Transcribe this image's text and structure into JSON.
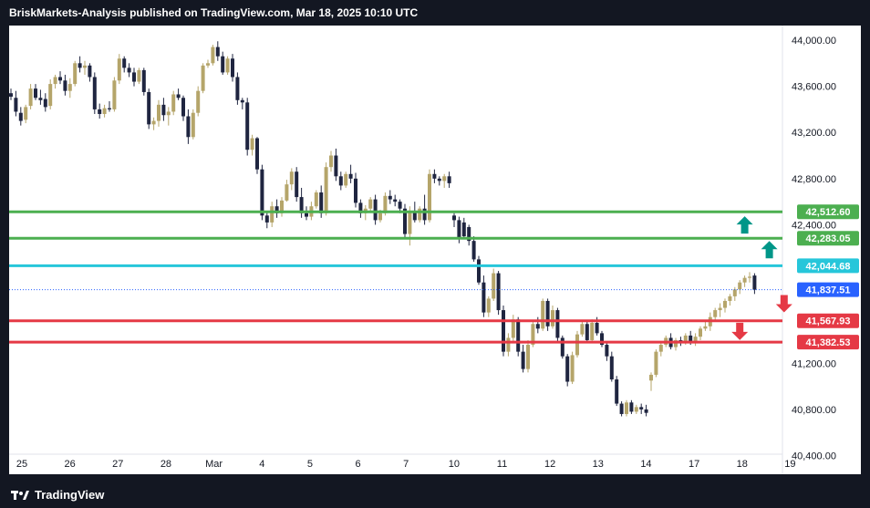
{
  "header": {
    "caption": "BriskMarkets-Analysis published on TradingView.com, Mar 18, 2025 10:10 UTC"
  },
  "footer": {
    "brand": "TradingView"
  },
  "colors": {
    "bull": "#b5a56a",
    "bear": "#1f2540",
    "resistance": "#4caf50",
    "pivot": "#26c6da",
    "support": "#e53945",
    "last_price": "#2962ff",
    "arrow_up": "#009688",
    "arrow_down": "#e53945"
  },
  "icons": {
    "up_arrow": "arrow-up-icon",
    "down_arrow": "arrow-down-icon",
    "logo": "tradingview-logo-icon"
  },
  "chart_data": {
    "type": "candlestick",
    "title": "",
    "xlabel": "",
    "ylabel": "",
    "ylim": [
      40100,
      44300
    ],
    "y_ticks": [
      "44,000.00",
      "43,600.00",
      "43,200.00",
      "42,800.00",
      "42,400.00",
      "41,200.00",
      "40,800.00",
      "40,400.00"
    ],
    "y_tick_values": [
      44000,
      43600,
      43200,
      42800,
      42400,
      41200,
      40800,
      40400
    ],
    "x_ticks": [
      "25",
      "26",
      "27",
      "28",
      "Mar",
      "4",
      "5",
      "6",
      "7",
      "10",
      "11",
      "12",
      "13",
      "14",
      "17",
      "18",
      "19"
    ],
    "levels": [
      {
        "label": "42,512.60",
        "value": 42512.6,
        "kind": "resistance"
      },
      {
        "label": "42,283.05",
        "value": 42283.05,
        "kind": "resistance"
      },
      {
        "label": "42,044.68",
        "value": 42044.68,
        "kind": "pivot"
      },
      {
        "label": "41,837.51",
        "value": 41837.51,
        "kind": "last_price"
      },
      {
        "label": "41,567.93",
        "value": 41567.93,
        "kind": "support"
      },
      {
        "label": "41,382.53",
        "value": 41382.53,
        "kind": "support"
      }
    ],
    "arrows": [
      {
        "direction": "up",
        "bar": 149,
        "value": 42395
      },
      {
        "direction": "up",
        "bar": 154,
        "value": 42180
      },
      {
        "direction": "down",
        "bar": 157,
        "value": 41720
      },
      {
        "direction": "down",
        "bar": 148,
        "value": 41480
      }
    ],
    "candles": [
      [
        43540,
        43580,
        43480,
        43510
      ],
      [
        43500,
        43560,
        43340,
        43380
      ],
      [
        43370,
        43420,
        43260,
        43300
      ],
      [
        43310,
        43440,
        43280,
        43420
      ],
      [
        43430,
        43620,
        43400,
        43580
      ],
      [
        43580,
        43620,
        43480,
        43500
      ],
      [
        43500,
        43570,
        43440,
        43480
      ],
      [
        43490,
        43540,
        43380,
        43420
      ],
      [
        43430,
        43660,
        43400,
        43620
      ],
      [
        43620,
        43700,
        43580,
        43680
      ],
      [
        43680,
        43730,
        43620,
        43650
      ],
      [
        43650,
        43700,
        43520,
        43560
      ],
      [
        43560,
        43670,
        43500,
        43620
      ],
      [
        43620,
        43820,
        43600,
        43800
      ],
      [
        43800,
        43860,
        43720,
        43760
      ],
      [
        43760,
        43820,
        43700,
        43780
      ],
      [
        43780,
        43800,
        43640,
        43680
      ],
      [
        43680,
        43720,
        43360,
        43400
      ],
      [
        43400,
        43450,
        43320,
        43360
      ],
      [
        43360,
        43440,
        43330,
        43410
      ],
      [
        43410,
        43470,
        43380,
        43400
      ],
      [
        43400,
        43680,
        43380,
        43650
      ],
      [
        43650,
        43880,
        43620,
        43840
      ],
      [
        43840,
        43860,
        43720,
        43760
      ],
      [
        43760,
        43800,
        43680,
        43720
      ],
      [
        43720,
        43760,
        43600,
        43640
      ],
      [
        43640,
        43760,
        43620,
        43740
      ],
      [
        43740,
        43760,
        43520,
        43550
      ],
      [
        43550,
        43580,
        43230,
        43270
      ],
      [
        43270,
        43330,
        43220,
        43300
      ],
      [
        43300,
        43480,
        43250,
        43440
      ],
      [
        43440,
        43500,
        43300,
        43350
      ],
      [
        43350,
        43420,
        43260,
        43380
      ],
      [
        43380,
        43560,
        43350,
        43530
      ],
      [
        43530,
        43580,
        43480,
        43500
      ],
      [
        43500,
        43520,
        43300,
        43340
      ],
      [
        43340,
        43400,
        43100,
        43160
      ],
      [
        43160,
        43400,
        43140,
        43370
      ],
      [
        43370,
        43600,
        43340,
        43560
      ],
      [
        43560,
        43800,
        43540,
        43780
      ],
      [
        43780,
        43830,
        43760,
        43800
      ],
      [
        43800,
        43960,
        43780,
        43940
      ],
      [
        43940,
        43990,
        43820,
        43860
      ],
      [
        43860,
        43900,
        43700,
        43720
      ],
      [
        43720,
        43860,
        43700,
        43840
      ],
      [
        43840,
        43880,
        43640,
        43680
      ],
      [
        43680,
        43720,
        43440,
        43480
      ],
      [
        43480,
        43500,
        43400,
        43460
      ],
      [
        43460,
        43500,
        43000,
        43050
      ],
      [
        43050,
        43180,
        43000,
        43150
      ],
      [
        43150,
        43160,
        42840,
        42880
      ],
      [
        42880,
        42920,
        42440,
        42480
      ],
      [
        42480,
        42520,
        42370,
        42420
      ],
      [
        42420,
        42600,
        42380,
        42560
      ],
      [
        42560,
        42620,
        42460,
        42500
      ],
      [
        42500,
        42640,
        42470,
        42610
      ],
      [
        42610,
        42790,
        42600,
        42750
      ],
      [
        42750,
        42890,
        42700,
        42860
      ],
      [
        42860,
        42900,
        42600,
        42640
      ],
      [
        42640,
        42720,
        42460,
        42500
      ],
      [
        42500,
        42560,
        42440,
        42470
      ],
      [
        42470,
        42600,
        42440,
        42560
      ],
      [
        42560,
        42700,
        42540,
        42680
      ],
      [
        42680,
        42740,
        42460,
        42500
      ],
      [
        42500,
        42940,
        42480,
        42900
      ],
      [
        42900,
        43040,
        42860,
        43000
      ],
      [
        43000,
        43060,
        42780,
        42820
      ],
      [
        42820,
        42860,
        42700,
        42740
      ],
      [
        42740,
        42860,
        42720,
        42840
      ],
      [
        42840,
        42920,
        42760,
        42800
      ],
      [
        42800,
        42850,
        42550,
        42590
      ],
      [
        42590,
        42620,
        42460,
        42500
      ],
      [
        42500,
        42570,
        42440,
        42540
      ],
      [
        42540,
        42640,
        42510,
        42620
      ],
      [
        42620,
        42660,
        42400,
        42440
      ],
      [
        42440,
        42530,
        42420,
        42500
      ],
      [
        42500,
        42680,
        42480,
        42650
      ],
      [
        42650,
        42700,
        42580,
        42620
      ],
      [
        42620,
        42660,
        42560,
        42600
      ],
      [
        42600,
        42620,
        42500,
        42540
      ],
      [
        42540,
        42580,
        42280,
        42320
      ],
      [
        42320,
        42560,
        42220,
        42520
      ],
      [
        42520,
        42600,
        42420,
        42440
      ],
      [
        42440,
        42560,
        42420,
        42540
      ],
      [
        42540,
        42660,
        42400,
        42440
      ],
      [
        42440,
        42880,
        42420,
        42840
      ],
      [
        42840,
        42880,
        42760,
        42800
      ],
      [
        42800,
        42820,
        42740,
        42780
      ],
      [
        42780,
        42840,
        42720,
        42820
      ],
      [
        42820,
        42860,
        42720,
        42760
      ],
      [
        42480,
        42500,
        42380,
        42440
      ],
      [
        42440,
        42470,
        42240,
        42280
      ],
      [
        42420,
        42460,
        42290,
        42300
      ],
      [
        42380,
        42400,
        42220,
        42260
      ],
      [
        42260,
        42300,
        42080,
        42100
      ],
      [
        42100,
        42130,
        41880,
        41900
      ],
      [
        41900,
        41960,
        41600,
        41640
      ],
      [
        41640,
        41780,
        41600,
        41760
      ],
      [
        41760,
        42020,
        41740,
        41980
      ],
      [
        41980,
        42000,
        41620,
        41660
      ],
      [
        41660,
        41700,
        41260,
        41300
      ],
      [
        41300,
        41460,
        41260,
        41420
      ],
      [
        41420,
        41620,
        41380,
        41580
      ],
      [
        41580,
        41600,
        41260,
        41300
      ],
      [
        41300,
        41360,
        41120,
        41150
      ],
      [
        41150,
        41400,
        41120,
        41360
      ],
      [
        41360,
        41560,
        41340,
        41540
      ],
      [
        41540,
        41600,
        41460,
        41500
      ],
      [
        41500,
        41760,
        41480,
        41740
      ],
      [
        41740,
        41760,
        41480,
        41520
      ],
      [
        41520,
        41700,
        41500,
        41660
      ],
      [
        41660,
        41680,
        41380,
        41420
      ],
      [
        41420,
        41440,
        41240,
        41260
      ],
      [
        41260,
        41280,
        41000,
        41040
      ],
      [
        41040,
        41300,
        41020,
        41270
      ],
      [
        41270,
        41480,
        41250,
        41450
      ],
      [
        41450,
        41560,
        41430,
        41540
      ],
      [
        41540,
        41560,
        41380,
        41400
      ],
      [
        41400,
        41580,
        41380,
        41550
      ],
      [
        41550,
        41600,
        41440,
        41460
      ],
      [
        41460,
        41480,
        41340,
        41360
      ],
      [
        41360,
        41380,
        41220,
        41260
      ],
      [
        41260,
        41300,
        41040,
        41060
      ],
      [
        41060,
        41090,
        40830,
        40850
      ],
      [
        40850,
        40870,
        40740,
        40760
      ],
      [
        40760,
        40880,
        40740,
        40860
      ],
      [
        40860,
        40880,
        40760,
        40780
      ],
      [
        40780,
        40840,
        40760,
        40820
      ],
      [
        40820,
        40850,
        40760,
        40800
      ],
      [
        40800,
        40840,
        40740,
        40770
      ],
      [
        41050,
        41120,
        40960,
        41100
      ],
      [
        41100,
        41320,
        41080,
        41300
      ],
      [
        41300,
        41380,
        41260,
        41360
      ],
      [
        41360,
        41440,
        41340,
        41420
      ],
      [
        41420,
        41460,
        41320,
        41340
      ],
      [
        41340,
        41420,
        41310,
        41400
      ],
      [
        41400,
        41430,
        41350,
        41380
      ],
      [
        41380,
        41460,
        41360,
        41440
      ],
      [
        41440,
        41480,
        41360,
        41380
      ],
      [
        41380,
        41460,
        41350,
        41430
      ],
      [
        41430,
        41520,
        41400,
        41500
      ],
      [
        41500,
        41560,
        41480,
        41520
      ],
      [
        41520,
        41640,
        41480,
        41600
      ],
      [
        41600,
        41680,
        41560,
        41660
      ],
      [
        41660,
        41720,
        41600,
        41680
      ],
      [
        41680,
        41760,
        41640,
        41740
      ],
      [
        41740,
        41800,
        41700,
        41780
      ],
      [
        41780,
        41860,
        41740,
        41840
      ],
      [
        41840,
        41920,
        41800,
        41900
      ],
      [
        41900,
        41960,
        41860,
        41940
      ],
      [
        41940,
        41990,
        41900,
        41950
      ],
      [
        41960,
        41980,
        41800,
        41837
      ]
    ]
  }
}
